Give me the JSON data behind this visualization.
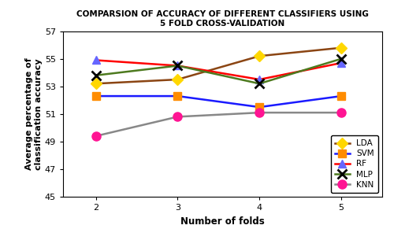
{
  "title_line1": "COMPARSION OF ACCURACY OF DIFFERENT CLASSIFIERS USING",
  "title_line2": "5 FOLD CROSS-VALIDATION",
  "xlabel": "Number of folds",
  "ylabel": "Average percentage of\nclassification accuracy",
  "x": [
    2,
    3,
    4,
    5
  ],
  "LDA": [
    53.2,
    53.5,
    55.2,
    55.8
  ],
  "SVM": [
    52.3,
    52.3,
    51.5,
    52.3
  ],
  "RF": [
    54.9,
    54.5,
    53.5,
    54.7
  ],
  "MLP": [
    53.8,
    54.5,
    53.2,
    55.0
  ],
  "KNN": [
    49.4,
    50.8,
    51.1,
    51.1
  ],
  "LDA_color": "#8B4513",
  "SVM_color": "#1a1aff",
  "RF_color": "#ff0000",
  "MLP_color": "#4d7a1f",
  "KNN_color": "#888888",
  "LDA_marker_color": "#FFD700",
  "SVM_marker_color": "#FF8C00",
  "RF_marker_color": "#6666FF",
  "MLP_marker_color": "#000000",
  "KNN_marker_color": "#FF1493",
  "ylim": [
    45,
    57
  ],
  "yticks": [
    45,
    47,
    49,
    51,
    53,
    55,
    57
  ],
  "title_fontsize": 7.5,
  "axis_label_fontsize": 8.5,
  "tick_fontsize": 8,
  "legend_fontsize": 7.5
}
